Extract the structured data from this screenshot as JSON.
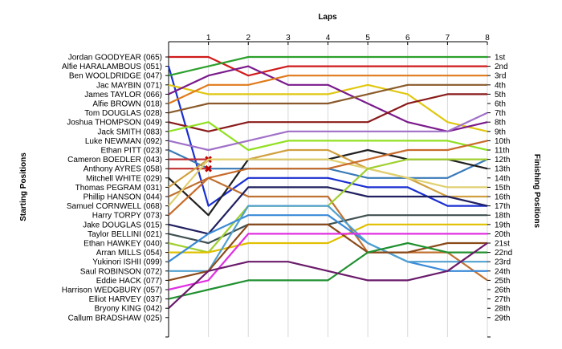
{
  "chart_data": {
    "type": "line",
    "xlabel": "Laps",
    "ylabel_left": "Starting Positions",
    "ylabel_right": "Finishing Positions",
    "x": [
      0,
      1,
      2,
      3,
      4,
      5,
      6,
      7,
      8
    ],
    "x_tick_labels": [
      "1",
      "2",
      "3",
      "4",
      "5",
      "6",
      "7",
      "8"
    ],
    "finish_labels": [
      "1st",
      "2nd",
      "3rd",
      "4th",
      "5th",
      "6th",
      "7th",
      "8th",
      "9th",
      "10th",
      "11th",
      "12th",
      "13th",
      "14th",
      "15th",
      "16th",
      "17th",
      "18th",
      "19th",
      "20th",
      "21st",
      "22nd",
      "23rd",
      "24th",
      "25th",
      "26th",
      "27th",
      "28th",
      "29th"
    ],
    "retired_marker": "✖",
    "series": [
      {
        "name": "Jordan GOODYEAR (065)",
        "color": "#d01a1a",
        "positions": [
          1,
          1,
          3,
          2,
          2,
          2,
          2,
          2,
          2
        ]
      },
      {
        "name": "Alfie HARALAMBOUS (051)",
        "color": "#1a2fd0",
        "positions": [
          2,
          17,
          14,
          14,
          14,
          15,
          15,
          17,
          17
        ]
      },
      {
        "name": "Ben WOOLDRIDGE (047)",
        "color": "#2ca02c",
        "positions": [
          3,
          2,
          1,
          1,
          1,
          1,
          1,
          1,
          1
        ]
      },
      {
        "name": "Jac MAYBIN (071)",
        "color": "#e0c810",
        "positions": [
          4,
          5,
          5,
          5,
          5,
          4,
          5,
          8,
          9
        ]
      },
      {
        "name": "James TAYLOR (066)",
        "color": "#7a1a8c",
        "positions": [
          5,
          3,
          2,
          4,
          4,
          6,
          8,
          9,
          8
        ]
      },
      {
        "name": "Alfie BROWN (018)",
        "color": "#e07a1a",
        "positions": [
          6,
          4,
          4,
          3,
          3,
          3,
          3,
          3,
          3
        ]
      },
      {
        "name": "Tom DOUGLAS (028)",
        "color": "#8a5a2a",
        "positions": [
          7,
          6,
          6,
          6,
          6,
          5,
          4,
          4,
          4
        ]
      },
      {
        "name": "Joshua THOMPSON (049)",
        "color": "#8a1a1a",
        "positions": [
          8,
          9,
          8,
          8,
          8,
          8,
          6,
          5,
          5
        ]
      },
      {
        "name": "Jack SMITH (083)",
        "color": "#90e020",
        "positions": [
          9,
          8,
          11,
          10,
          10,
          10,
          10,
          10,
          11
        ]
      },
      {
        "name": "Luke NEWMAN (092)",
        "color": "#a070c8",
        "positions": [
          10,
          11,
          10,
          9,
          9,
          9,
          9,
          9,
          7
        ]
      },
      {
        "name": "Ethan PITT (023)",
        "color": "#3a7ab8",
        "positions": [
          11,
          13,
          13,
          13,
          13,
          14,
          14,
          14,
          12
        ]
      },
      {
        "name": "Cameron BOEDLER (043)",
        "color": "#c03030",
        "positions": [
          12,
          12,
          null,
          null,
          null,
          null,
          null,
          null,
          null
        ],
        "retired": true
      },
      {
        "name": "Anthony AYRES (058)",
        "color": "#c03030",
        "positions": [
          13,
          13,
          null,
          null,
          null,
          null,
          null,
          null,
          null
        ],
        "retired": true
      },
      {
        "name": "Mitchell WHITE (029)",
        "color": "#202020",
        "positions": [
          14,
          18,
          12,
          12,
          12,
          11,
          12,
          12,
          13
        ]
      },
      {
        "name": "Thomas PEGRAM (031)",
        "color": "#d0a040",
        "positions": [
          15,
          12,
          12,
          11,
          11,
          13,
          14,
          16,
          16
        ]
      },
      {
        "name": "Phillip HANSON (044)",
        "color": "#c07030",
        "positions": [
          16,
          14,
          16,
          16,
          16,
          22,
          22,
          22,
          25
        ]
      },
      {
        "name": "Samuel CORNWELL (068)",
        "color": "#e0d070",
        "positions": [
          17,
          12,
          12,
          12,
          12,
          13,
          14,
          15,
          15
        ]
      },
      {
        "name": "Harry TORPY (073)",
        "color": "#c86a2a",
        "positions": [
          18,
          14,
          13,
          13,
          13,
          12,
          11,
          11,
          10
        ]
      },
      {
        "name": "Jake DOUGLAS (015)",
        "color": "#202060",
        "positions": [
          19,
          20,
          15,
          15,
          15,
          16,
          16,
          16,
          17
        ]
      },
      {
        "name": "Taylor BELLINI (021)",
        "color": "#405050",
        "positions": [
          20,
          21,
          19,
          19,
          19,
          18,
          18,
          18,
          18
        ]
      },
      {
        "name": "Ethan HAWKEY (040)",
        "color": "#a0d030",
        "positions": [
          21,
          22,
          17,
          17,
          17,
          13,
          12,
          12,
          12
        ]
      },
      {
        "name": "Arran MILLS (054)",
        "color": "#e0c000",
        "positions": [
          22,
          22,
          21,
          21,
          21,
          19,
          19,
          19,
          19
        ]
      },
      {
        "name": "Yukinori ISHII (099)",
        "color": "#3a8ad8",
        "positions": [
          23,
          20,
          18,
          18,
          18,
          21,
          23,
          24,
          24
        ]
      },
      {
        "name": "Saul ROBINSON (072)",
        "color": "#50a0d0",
        "positions": [
          24,
          24,
          17,
          17,
          17,
          21,
          23,
          23,
          23
        ]
      },
      {
        "name": "Eddie HACK (077)",
        "color": "#8a4a1a",
        "positions": [
          25,
          24,
          19,
          19,
          19,
          22,
          22,
          21,
          21
        ]
      },
      {
        "name": "Harrison WEDGBURY (057)",
        "color": "#e030e0",
        "positions": [
          26,
          25,
          20,
          20,
          20,
          20,
          20,
          20,
          20
        ]
      },
      {
        "name": "Elliot HARVEY (037)",
        "color": "#209030",
        "positions": [
          27,
          26,
          25,
          25,
          25,
          22,
          21,
          22,
          22
        ]
      },
      {
        "name": "Bryony KING (042)",
        "color": "#6a1a6a",
        "positions": [
          28,
          24,
          23,
          23,
          24,
          25,
          25,
          24,
          21
        ]
      },
      {
        "name": "Callum BRADSHAW (025)",
        "color": "#808080",
        "positions": [
          29,
          null,
          null,
          null,
          null,
          null,
          null,
          null,
          null
        ]
      }
    ]
  }
}
